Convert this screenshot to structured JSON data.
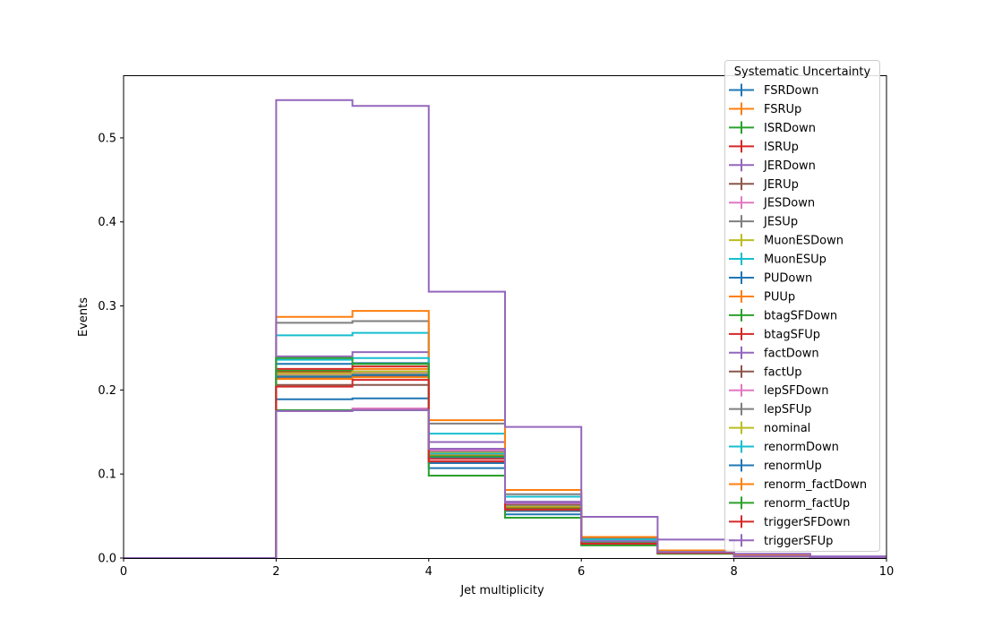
{
  "chart_data": {
    "type": "histogram-step",
    "xlabel": "Jet multiplicity",
    "ylabel": "Events",
    "xlim": [
      0,
      10
    ],
    "ylim": [
      0,
      0.574
    ],
    "x_ticks": [
      0,
      2,
      4,
      6,
      8,
      10
    ],
    "y_ticks": [
      0.0,
      0.1,
      0.2,
      0.3,
      0.4,
      0.5
    ],
    "x_tick_labels": [
      "0",
      "2",
      "4",
      "6",
      "8",
      "10"
    ],
    "y_tick_labels": [
      "0.0",
      "0.1",
      "0.2",
      "0.3",
      "0.4",
      "0.5"
    ],
    "grid": false,
    "legend_title": "Systematic Uncertainty",
    "legend_position": "upper-right",
    "bin_edges": [
      0,
      1,
      2,
      3,
      4,
      5,
      6,
      7,
      8,
      9,
      10
    ],
    "series": [
      {
        "name": "FSRDown",
        "color": "#1f77b4",
        "values": [
          0,
          0,
          0.189,
          0.19,
          0.113,
          0.056,
          0.017,
          0.006,
          0.002,
          0.001
        ]
      },
      {
        "name": "FSRUp",
        "color": "#ff7f0e",
        "values": [
          0,
          0,
          0.222,
          0.225,
          0.128,
          0.062,
          0.019,
          0.007,
          0.002,
          0.001
        ]
      },
      {
        "name": "ISRDown",
        "color": "#2ca02c",
        "values": [
          0,
          0,
          0.223,
          0.231,
          0.123,
          0.06,
          0.018,
          0.007,
          0.002,
          0.001
        ]
      },
      {
        "name": "ISRUp",
        "color": "#d62728",
        "values": [
          0,
          0,
          0.225,
          0.228,
          0.126,
          0.061,
          0.019,
          0.007,
          0.002,
          0.001
        ]
      },
      {
        "name": "JERDown",
        "color": "#9467bd",
        "values": [
          0,
          0,
          0.24,
          0.245,
          0.138,
          0.067,
          0.021,
          0.008,
          0.003,
          0.001
        ]
      },
      {
        "name": "JERUp",
        "color": "#8c564b",
        "values": [
          0,
          0,
          0.206,
          0.206,
          0.115,
          0.057,
          0.017,
          0.006,
          0.002,
          0.001
        ]
      },
      {
        "name": "JESDown",
        "color": "#e377c2",
        "values": [
          0,
          0,
          0.175,
          0.178,
          0.128,
          0.064,
          0.02,
          0.007,
          0.002,
          0.001
        ]
      },
      {
        "name": "JESUp",
        "color": "#7f7f7f",
        "values": [
          0,
          0,
          0.28,
          0.282,
          0.16,
          0.076,
          0.023,
          0.008,
          0.003,
          0.001
        ]
      },
      {
        "name": "MuonESDown",
        "color": "#bcbd22",
        "values": [
          0,
          0,
          0.218,
          0.22,
          0.124,
          0.06,
          0.018,
          0.007,
          0.002,
          0.001
        ]
      },
      {
        "name": "MuonESUp",
        "color": "#17becf",
        "values": [
          0,
          0,
          0.265,
          0.268,
          0.148,
          0.073,
          0.022,
          0.008,
          0.003,
          0.001
        ]
      },
      {
        "name": "PUDown",
        "color": "#1f77b4",
        "values": [
          0,
          0,
          0.231,
          0.232,
          0.107,
          0.052,
          0.016,
          0.006,
          0.002,
          0.001
        ]
      },
      {
        "name": "PUUp",
        "color": "#ff7f0e",
        "values": [
          0,
          0,
          0.287,
          0.294,
          0.164,
          0.081,
          0.025,
          0.009,
          0.003,
          0.001
        ]
      },
      {
        "name": "btagSFDown",
        "color": "#2ca02c",
        "values": [
          0,
          0,
          0.176,
          0.176,
          0.098,
          0.048,
          0.015,
          0.005,
          0.002,
          0.001
        ]
      },
      {
        "name": "btagSFUp",
        "color": "#d62728",
        "values": [
          0,
          0,
          0.221,
          0.222,
          0.118,
          0.058,
          0.018,
          0.006,
          0.002,
          0.001
        ]
      },
      {
        "name": "factDown",
        "color": "#9467bd",
        "values": [
          0,
          0,
          0.545,
          0.538,
          0.317,
          0.156,
          0.049,
          0.022,
          0.005,
          0.002
        ]
      },
      {
        "name": "factUp",
        "color": "#8c564b",
        "values": [
          0,
          0,
          0.214,
          0.216,
          0.13,
          0.063,
          0.019,
          0.007,
          0.002,
          0.001
        ]
      },
      {
        "name": "lepSFDown",
        "color": "#e377c2",
        "values": [
          0,
          0,
          0.219,
          0.221,
          0.125,
          0.061,
          0.019,
          0.007,
          0.002,
          0.001
        ]
      },
      {
        "name": "lepSFUp",
        "color": "#7f7f7f",
        "values": [
          0,
          0,
          0.22,
          0.222,
          0.126,
          0.062,
          0.019,
          0.007,
          0.002,
          0.001
        ]
      },
      {
        "name": "nominal",
        "color": "#bcbd22",
        "values": [
          0,
          0,
          0.22,
          0.222,
          0.125,
          0.061,
          0.019,
          0.007,
          0.002,
          0.001
        ]
      },
      {
        "name": "renormDown",
        "color": "#17becf",
        "values": [
          0,
          0,
          0.236,
          0.238,
          0.124,
          0.06,
          0.018,
          0.007,
          0.002,
          0.001
        ]
      },
      {
        "name": "renormUp",
        "color": "#1f77b4",
        "values": [
          0,
          0,
          0.216,
          0.218,
          0.12,
          0.059,
          0.018,
          0.006,
          0.002,
          0.001
        ]
      },
      {
        "name": "renorm_factDown",
        "color": "#ff7f0e",
        "values": [
          0,
          0,
          0.213,
          0.215,
          0.122,
          0.06,
          0.018,
          0.006,
          0.002,
          0.001
        ]
      },
      {
        "name": "renorm_factUp",
        "color": "#2ca02c",
        "values": [
          0,
          0,
          0.238,
          0.231,
          0.121,
          0.059,
          0.018,
          0.006,
          0.002,
          0.001
        ]
      },
      {
        "name": "triggerSFDown",
        "color": "#d62728",
        "values": [
          0,
          0,
          0.204,
          0.212,
          0.115,
          0.058,
          0.017,
          0.006,
          0.002,
          0.001
        ]
      },
      {
        "name": "triggerSFUp",
        "color": "#9467bd",
        "values": [
          0,
          0,
          0.175,
          0.176,
          0.13,
          0.066,
          0.02,
          0.007,
          0.002,
          0.001
        ]
      }
    ]
  }
}
